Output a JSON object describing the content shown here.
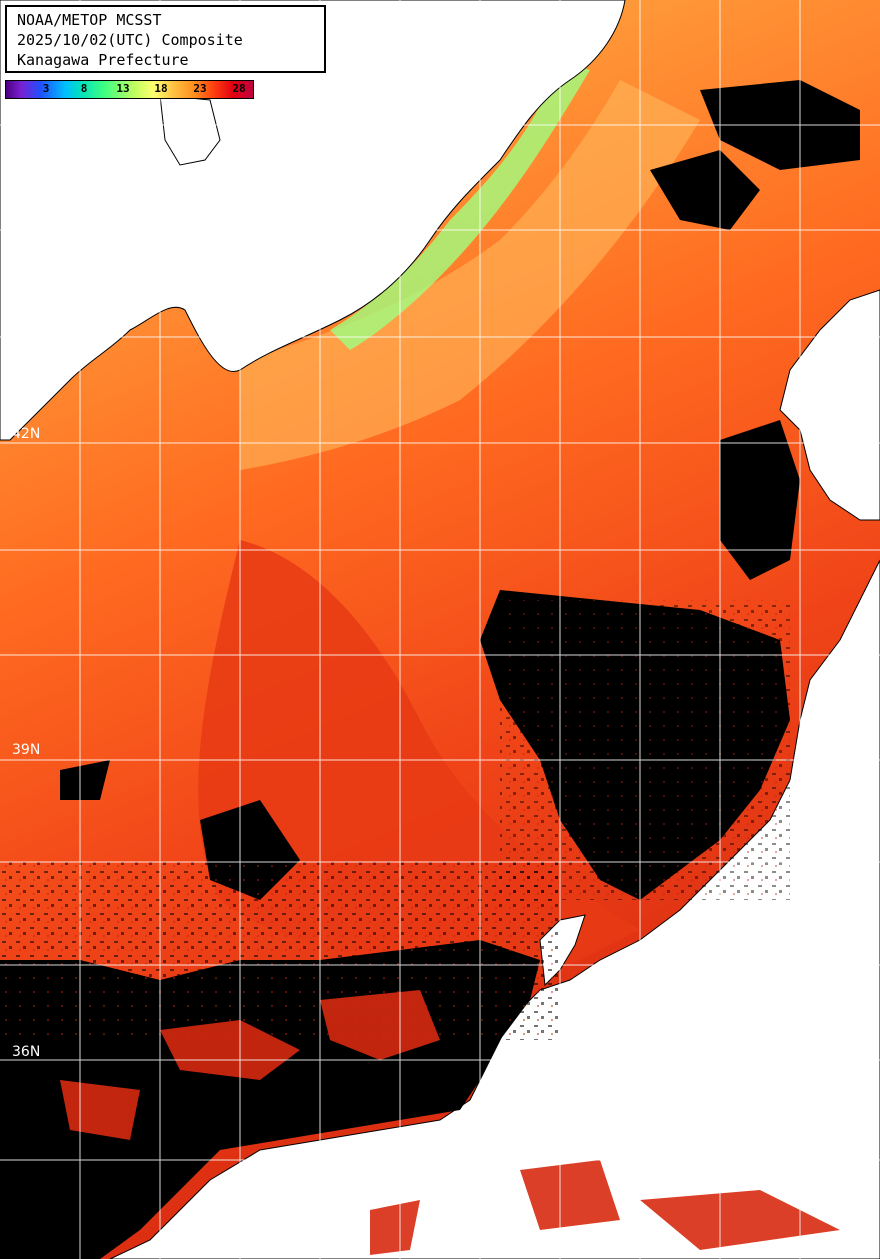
{
  "header": {
    "line1": "NOAA/METOP MCSST",
    "line2": "2025/10/02(UTC) Composite",
    "line3": "Kanagawa Prefecture"
  },
  "legend": {
    "ticks": [
      "3",
      "8",
      "13",
      "18",
      "23",
      "28"
    ]
  },
  "latitude_labels": [
    "42N",
    "39N",
    "36N"
  ],
  "colors": {
    "land": "#ffffff",
    "no_data": "#000000",
    "warm_sst": "#e83010",
    "mid_sst": "#ff7a20",
    "cool_sst": "#ffc060",
    "cold_coast": "#90ff80",
    "grid": "#ffffff"
  }
}
